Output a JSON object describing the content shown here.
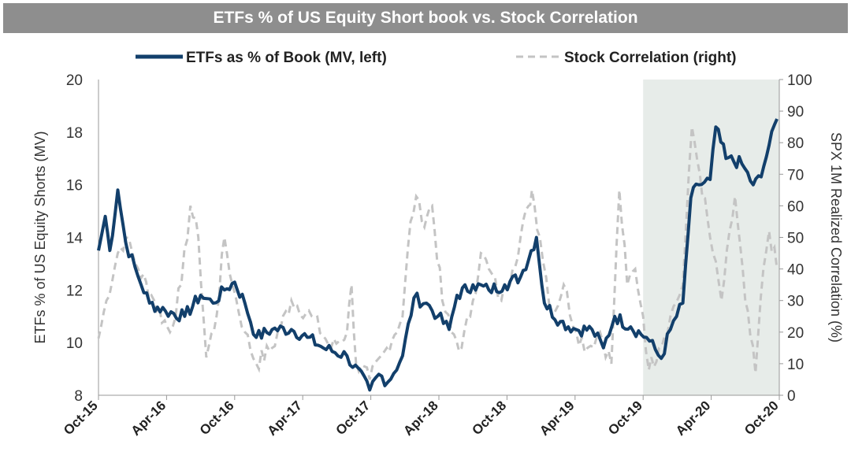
{
  "chart_data": {
    "type": "line",
    "title": "ETFs % of US Equity Short book vs. Stock Correlation",
    "x_unit": "months since Oct-15",
    "x_ticks": [
      "Oct-15",
      "Apr-16",
      "Oct-16",
      "Apr-17",
      "Oct-17",
      "Apr-18",
      "Oct-18",
      "Apr-19",
      "Oct-19",
      "Apr-20",
      "Oct-20"
    ],
    "xlim": [
      0,
      60
    ],
    "ylabel_left": "ETFs % of US Equity Shorts (MV)",
    "ylim_left": [
      8,
      20
    ],
    "yticks_left": [
      8,
      10,
      12,
      14,
      16,
      18,
      20
    ],
    "ylabel_right": "SPX 1M Realized Correlation (%)",
    "ylim_right": [
      0,
      100
    ],
    "yticks_right": [
      0,
      10,
      20,
      30,
      40,
      50,
      60,
      70,
      80,
      90,
      100
    ],
    "shaded_range": [
      48,
      60
    ],
    "legend_position": "top",
    "series": [
      {
        "name": "ETFs as % of Book (MV, left)",
        "axis": "left",
        "color": "#123f6b",
        "style": "solid",
        "x": [
          0,
          0.6,
          1.0,
          1.7,
          2.4,
          3.5,
          4.5,
          5.9,
          7.6,
          9.0,
          10.1,
          11.1,
          12.0,
          12.9,
          13.9,
          15.3,
          17.0,
          18.4,
          19.8,
          21.9,
          23.9,
          24.7,
          25.5,
          26.8,
          27.8,
          28.9,
          29.9,
          30.9,
          31.6,
          33.0,
          34.4,
          35.8,
          37.2,
          38.6,
          39.3,
          40.7,
          42.1,
          43.5,
          44.5,
          45.5,
          46.9,
          48.3,
          49.6,
          50.4,
          51.5,
          52.2,
          52.9,
          53.9,
          54.4,
          55.3,
          56.7,
          57.7,
          58.4,
          59.1,
          59.8
        ],
        "y": [
          13.5,
          14.8,
          13.5,
          15.8,
          13.8,
          12.5,
          11.5,
          11.2,
          11.0,
          11.8,
          11.5,
          12.0,
          12.3,
          11.5,
          10.2,
          10.5,
          10.5,
          10.2,
          9.8,
          9.5,
          8.2,
          8.8,
          8.5,
          9.5,
          11.7,
          11.5,
          11.0,
          10.5,
          11.8,
          12.2,
          12.0,
          12.2,
          12.5,
          14.0,
          11.5,
          10.8,
          10.5,
          10.5,
          9.8,
          11.0,
          10.6,
          10.2,
          9.4,
          10.5,
          11.5,
          15.5,
          16.0,
          16.2,
          18.2,
          17.0,
          16.8,
          16.0,
          16.3,
          17.5,
          18.5
        ]
      },
      {
        "name": "Stock Correlation (right)",
        "axis": "right",
        "color": "#c4c4c4",
        "style": "dashed",
        "x": [
          0,
          0.7,
          1.7,
          2.4,
          3.5,
          4.9,
          6.3,
          7.3,
          8.1,
          8.8,
          9.5,
          10.4,
          11.1,
          11.8,
          12.9,
          13.9,
          15.3,
          17.0,
          18.8,
          20.5,
          21.9,
          22.3,
          22.7,
          23.9,
          25.4,
          26.8,
          27.5,
          28.0,
          28.5,
          29.4,
          30.3,
          31.1,
          32.0,
          33.0,
          33.7,
          34.4,
          35.5,
          36.5,
          37.9,
          38.2,
          38.9,
          40.0,
          41.0,
          42.1,
          43.1,
          44.2,
          45.2,
          45.9,
          46.6,
          47.3,
          48.0,
          48.5,
          49.4,
          50.4,
          51.5,
          52.3,
          53.0,
          53.9,
          54.9,
          56.1,
          57.0,
          57.9,
          58.6,
          59.1,
          59.8
        ],
        "y": [
          18,
          30,
          45,
          50,
          40,
          30,
          20,
          35,
          60,
          50,
          12,
          25,
          50,
          35,
          20,
          10,
          15,
          30,
          25,
          15,
          20,
          35,
          10,
          5,
          15,
          25,
          55,
          63,
          55,
          60,
          30,
          20,
          15,
          30,
          45,
          40,
          30,
          40,
          60,
          65,
          50,
          25,
          35,
          20,
          15,
          20,
          10,
          65,
          35,
          40,
          25,
          8,
          15,
          25,
          35,
          85,
          70,
          50,
          30,
          63,
          30,
          7,
          40,
          52,
          40
        ]
      }
    ]
  }
}
